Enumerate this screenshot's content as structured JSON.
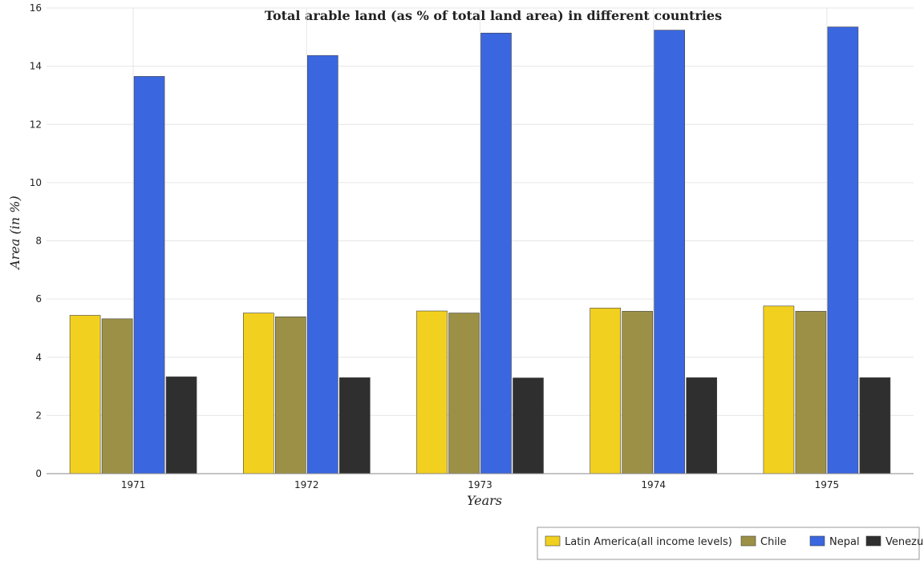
{
  "chart_data": {
    "type": "bar",
    "title": "Total arable land (as % of total land area) in different countries",
    "xlabel": "Years",
    "ylabel": "Area (in %)",
    "categories": [
      "1971",
      "1972",
      "1973",
      "1974",
      "1975"
    ],
    "ylim": [
      0,
      16
    ],
    "yticks": [
      0,
      2,
      4,
      6,
      8,
      10,
      12,
      14,
      16
    ],
    "grid": true,
    "legend_position": "bottom-right",
    "series": [
      {
        "name": "Latin America(all income levels)",
        "color": "#f2d01f",
        "values": [
          5.44,
          5.52,
          5.59,
          5.69,
          5.76
        ]
      },
      {
        "name": "Chile",
        "color": "#9b9046",
        "values": [
          5.32,
          5.39,
          5.52,
          5.58,
          5.58
        ]
      },
      {
        "name": "Nepal",
        "color": "#3a66e0",
        "values": [
          13.65,
          14.37,
          15.14,
          15.24,
          15.35
        ]
      },
      {
        "name": "Venezuela",
        "color": "#2f2f2f",
        "values": [
          3.33,
          3.3,
          3.29,
          3.3,
          3.3
        ]
      }
    ]
  }
}
